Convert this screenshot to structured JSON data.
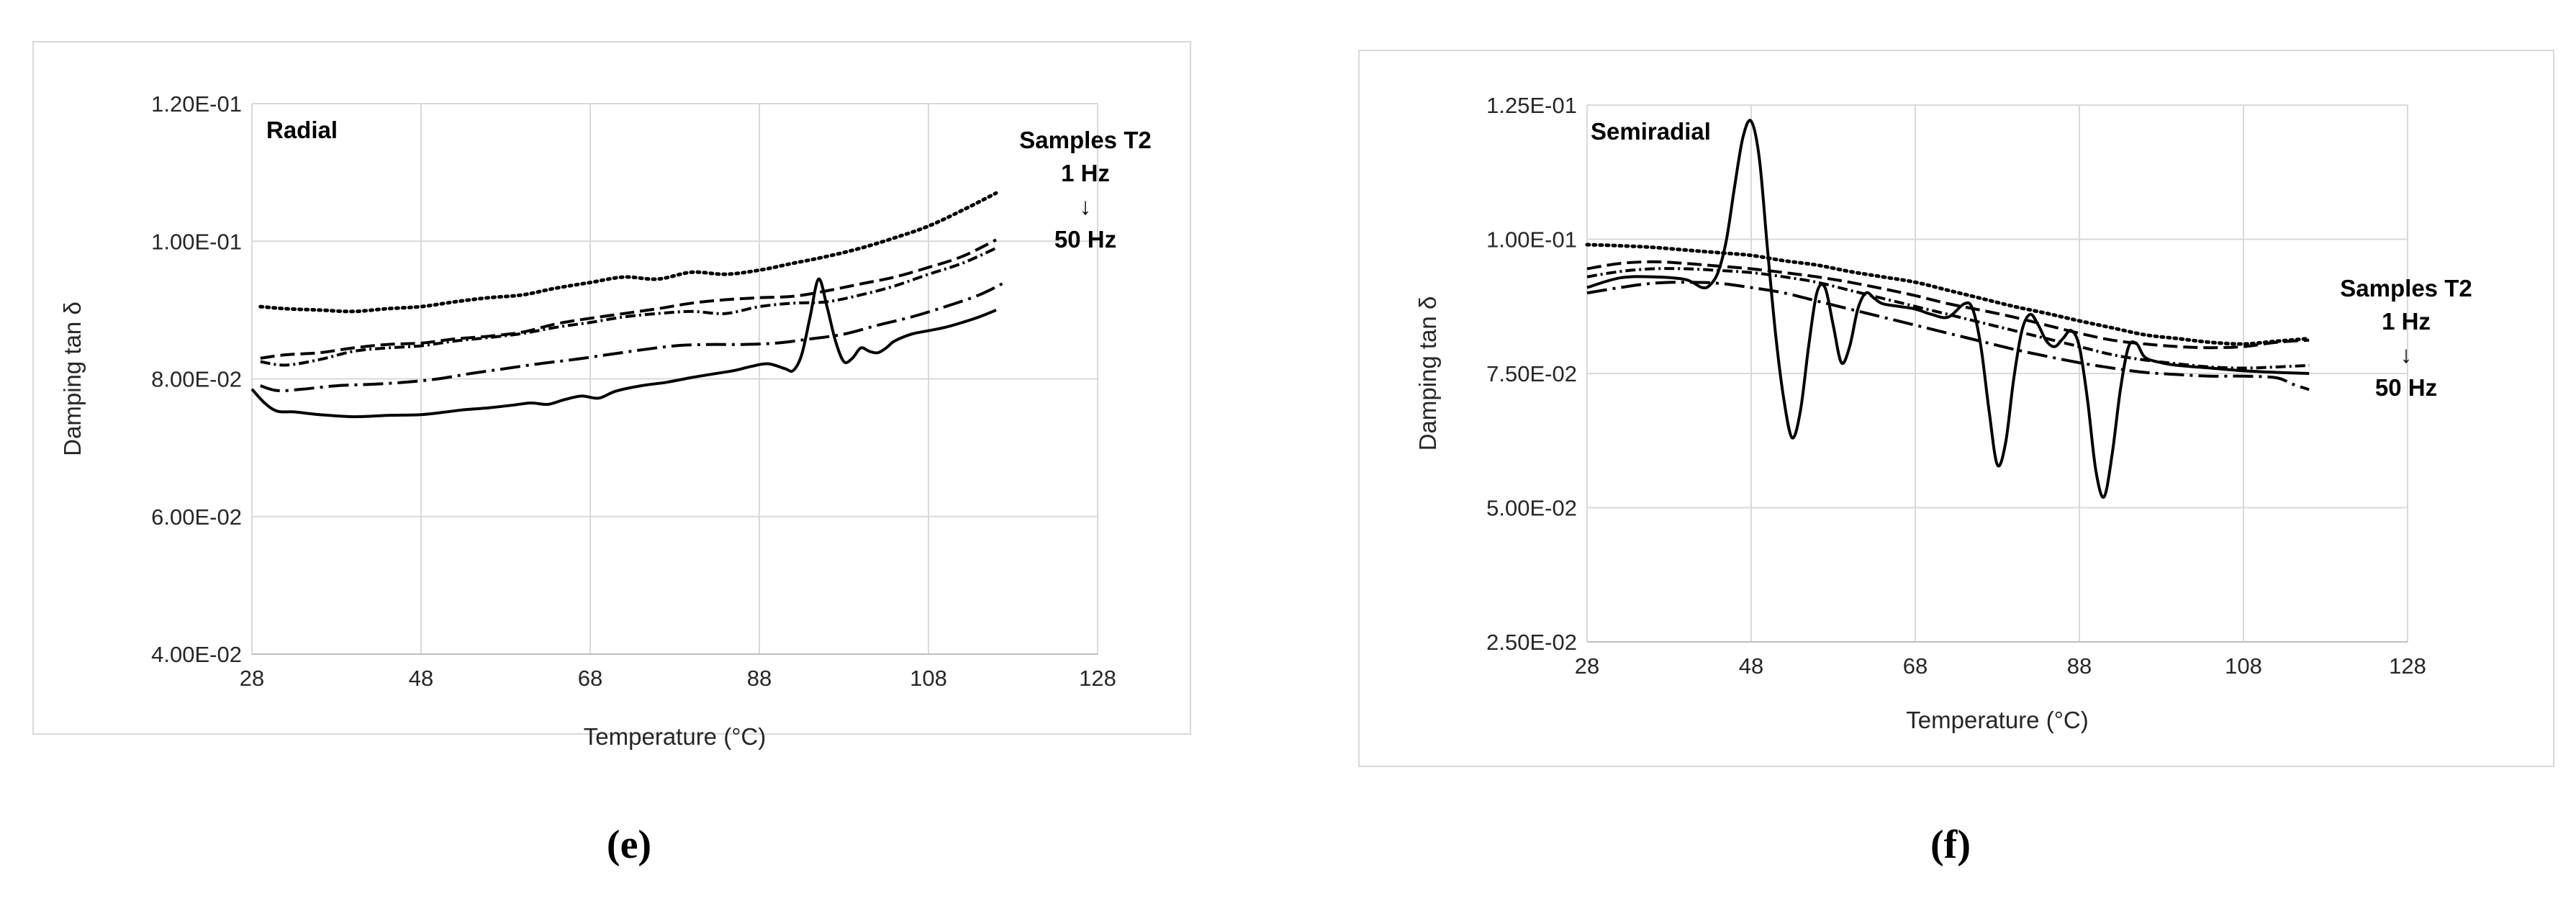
{
  "chart_data": [
    {
      "type": "line",
      "panel_label": "Radial",
      "caption": "(e)",
      "xlabel": "Temperature (°C)",
      "ylabel": "Damping tan δ",
      "xlim": [
        28,
        128
      ],
      "ylim": [
        0.04,
        0.12
      ],
      "xticks": [
        28,
        48,
        68,
        88,
        108,
        128
      ],
      "yticks": [
        0.04,
        0.06,
        0.08,
        0.1,
        0.12
      ],
      "ytick_labels": [
        "4.00E-02",
        "6.00E-02",
        "8.00E-02",
        "1.00E-01",
        "1.20E-01"
      ],
      "grid": true,
      "legend": {
        "lines": [
          "Samples T2",
          "1 Hz",
          "↓",
          "50 Hz"
        ],
        "placement": "top-right"
      },
      "series": [
        {
          "style": "solid",
          "x": [
            28,
            29.5,
            31,
            33,
            36,
            40,
            44,
            48,
            51,
            53,
            56,
            59,
            61,
            63,
            65,
            67,
            69,
            71,
            74,
            77,
            80,
            83,
            85,
            87,
            89,
            91,
            92,
            93,
            94,
            95,
            96,
            97,
            98,
            99,
            100,
            101,
            102,
            103,
            104,
            106,
            108,
            110,
            112,
            114,
            116
          ],
          "y": [
            0.0785,
            0.0765,
            0.0753,
            0.0752,
            0.0748,
            0.0745,
            0.0747,
            0.0748,
            0.0752,
            0.0755,
            0.0758,
            0.0762,
            0.0765,
            0.0763,
            0.077,
            0.0775,
            0.0772,
            0.0782,
            0.079,
            0.0795,
            0.0802,
            0.0808,
            0.0812,
            0.0818,
            0.0822,
            0.0815,
            0.0812,
            0.0835,
            0.089,
            0.0945,
            0.0905,
            0.0855,
            0.0825,
            0.083,
            0.0845,
            0.084,
            0.0838,
            0.0845,
            0.0855,
            0.0865,
            0.087,
            0.0875,
            0.0882,
            0.089,
            0.09
          ]
        },
        {
          "style": "dotted",
          "x": [
            29,
            32,
            36,
            40,
            44,
            48,
            52,
            56,
            60,
            64,
            68,
            72,
            76,
            80,
            84,
            88,
            92,
            96,
            100,
            104,
            108,
            112,
            116
          ],
          "y": [
            0.0905,
            0.0902,
            0.09,
            0.0898,
            0.0902,
            0.0905,
            0.0912,
            0.0918,
            0.0922,
            0.0932,
            0.094,
            0.0948,
            0.0945,
            0.0955,
            0.0952,
            0.0958,
            0.0968,
            0.0978,
            0.099,
            0.1005,
            0.1022,
            0.1045,
            0.107
          ]
        },
        {
          "style": "dash",
          "x": [
            29,
            32,
            36,
            40,
            44,
            48,
            52,
            56,
            60,
            64,
            68,
            72,
            76,
            80,
            84,
            88,
            92,
            96,
            100,
            104,
            108,
            112,
            116
          ],
          "y": [
            0.083,
            0.0835,
            0.0838,
            0.0845,
            0.085,
            0.0852,
            0.0858,
            0.0862,
            0.0868,
            0.088,
            0.0888,
            0.0895,
            0.0902,
            0.091,
            0.0915,
            0.0918,
            0.092,
            0.0928,
            0.0938,
            0.0948,
            0.0962,
            0.0978,
            0.1002
          ]
        },
        {
          "style": "dashdot-fine",
          "x": [
            29,
            32,
            36,
            40,
            44,
            48,
            52,
            56,
            60,
            64,
            68,
            72,
            76,
            80,
            84,
            88,
            92,
            96,
            100,
            104,
            108,
            112,
            116
          ],
          "y": [
            0.0825,
            0.082,
            0.0828,
            0.084,
            0.0845,
            0.0848,
            0.0855,
            0.086,
            0.0866,
            0.0875,
            0.0882,
            0.089,
            0.0895,
            0.0898,
            0.0895,
            0.0905,
            0.091,
            0.0912,
            0.0922,
            0.0935,
            0.0952,
            0.0968,
            0.099
          ]
        },
        {
          "style": "dashdot",
          "x": [
            29,
            31,
            34,
            38,
            42,
            46,
            50,
            54,
            58,
            62,
            66,
            70,
            74,
            78,
            82,
            86,
            90,
            94,
            98,
            102,
            106,
            110,
            114,
            117
          ],
          "y": [
            0.079,
            0.0783,
            0.0785,
            0.079,
            0.0792,
            0.0795,
            0.08,
            0.0808,
            0.0815,
            0.0822,
            0.0828,
            0.0835,
            0.0842,
            0.0848,
            0.085,
            0.085,
            0.0852,
            0.0858,
            0.0865,
            0.0878,
            0.089,
            0.0905,
            0.0922,
            0.094
          ]
        }
      ]
    },
    {
      "type": "line",
      "panel_label": "Semiradial",
      "caption": "(f)",
      "xlabel": "Temperature (°C)",
      "ylabel": "Damping tan δ",
      "xlim": [
        28,
        128
      ],
      "ylim": [
        0.025,
        0.125
      ],
      "xticks": [
        28,
        48,
        68,
        88,
        108,
        128
      ],
      "yticks": [
        0.025,
        0.05,
        0.075,
        0.1,
        0.125
      ],
      "ytick_labels": [
        "2.50E-02",
        "5.00E-02",
        "7.50E-02",
        "1.00E-01",
        "1.25E-01"
      ],
      "grid": true,
      "legend": {
        "lines": [
          "Samples T2",
          "1 Hz",
          "↓",
          "50 Hz"
        ],
        "placement": "right"
      },
      "series": [
        {
          "style": "solid",
          "x": [
            28,
            32,
            36,
            40,
            42,
            43,
            44,
            45,
            46,
            47,
            48,
            49,
            50,
            51,
            52,
            53,
            54,
            55,
            56,
            57,
            58,
            59,
            60,
            61,
            62,
            63,
            64,
            66,
            68,
            70,
            72,
            74,
            75,
            76,
            77,
            78,
            79,
            80,
            81,
            82,
            83,
            84,
            85,
            86,
            87,
            88,
            89,
            90,
            91,
            92,
            93,
            94,
            95,
            96,
            98,
            100,
            104,
            108,
            112,
            116
          ],
          "y": [
            0.091,
            0.0928,
            0.093,
            0.0925,
            0.091,
            0.0915,
            0.094,
            0.1,
            0.11,
            0.119,
            0.122,
            0.115,
            0.098,
            0.082,
            0.07,
            0.063,
            0.068,
            0.08,
            0.09,
            0.091,
            0.084,
            0.077,
            0.08,
            0.087,
            0.09,
            0.089,
            0.088,
            0.0875,
            0.087,
            0.086,
            0.0855,
            0.088,
            0.087,
            0.08,
            0.068,
            0.058,
            0.062,
            0.074,
            0.083,
            0.086,
            0.084,
            0.081,
            0.08,
            0.0815,
            0.083,
            0.08,
            0.07,
            0.057,
            0.052,
            0.06,
            0.072,
            0.08,
            0.0805,
            0.078,
            0.077,
            0.0765,
            0.076,
            0.0755,
            0.0752,
            0.075
          ]
        },
        {
          "style": "dotted",
          "x": [
            28,
            32,
            36,
            40,
            44,
            48,
            52,
            56,
            60,
            64,
            68,
            72,
            76,
            80,
            84,
            88,
            92,
            96,
            100,
            104,
            108,
            112,
            116
          ],
          "y": [
            0.099,
            0.0988,
            0.0985,
            0.098,
            0.0975,
            0.097,
            0.096,
            0.0952,
            0.094,
            0.093,
            0.092,
            0.0905,
            0.089,
            0.0875,
            0.0862,
            0.0848,
            0.0835,
            0.0822,
            0.0815,
            0.0808,
            0.0805,
            0.081,
            0.0815
          ]
        },
        {
          "style": "dash",
          "x": [
            28,
            32,
            36,
            40,
            44,
            48,
            52,
            56,
            60,
            64,
            68,
            72,
            76,
            80,
            84,
            88,
            92,
            96,
            100,
            104,
            108,
            112,
            116
          ],
          "y": [
            0.0945,
            0.0955,
            0.0958,
            0.0955,
            0.095,
            0.0945,
            0.0938,
            0.093,
            0.092,
            0.0908,
            0.0895,
            0.088,
            0.0868,
            0.0855,
            0.084,
            0.0825,
            0.0812,
            0.0805,
            0.08,
            0.0798,
            0.08,
            0.0808,
            0.0812
          ]
        },
        {
          "style": "dashdot-fine",
          "x": [
            28,
            32,
            36,
            40,
            44,
            48,
            52,
            56,
            60,
            64,
            68,
            72,
            76,
            80,
            84,
            88,
            92,
            96,
            100,
            104,
            108,
            112,
            116
          ],
          "y": [
            0.093,
            0.094,
            0.0945,
            0.0945,
            0.0942,
            0.0938,
            0.093,
            0.092,
            0.0905,
            0.089,
            0.0875,
            0.086,
            0.0845,
            0.083,
            0.0815,
            0.08,
            0.0785,
            0.0775,
            0.0768,
            0.0762,
            0.076,
            0.0762,
            0.0765
          ]
        },
        {
          "style": "dashdot",
          "x": [
            28,
            32,
            36,
            40,
            44,
            48,
            52,
            56,
            60,
            64,
            68,
            72,
            76,
            80,
            84,
            88,
            92,
            96,
            100,
            104,
            108,
            112,
            114,
            116
          ],
          "y": [
            0.09,
            0.091,
            0.0918,
            0.092,
            0.0918,
            0.091,
            0.09,
            0.0885,
            0.087,
            0.0855,
            0.084,
            0.0825,
            0.081,
            0.0795,
            0.0782,
            0.077,
            0.076,
            0.0752,
            0.0748,
            0.0745,
            0.0745,
            0.0742,
            0.073,
            0.072
          ]
        }
      ]
    }
  ]
}
